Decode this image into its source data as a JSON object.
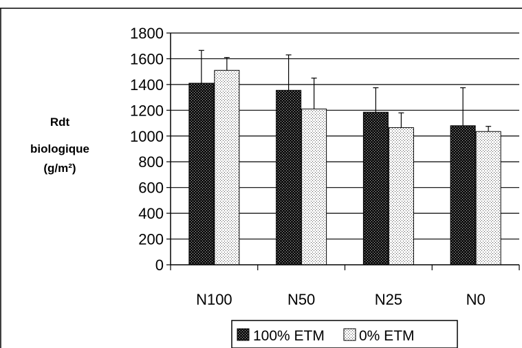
{
  "chart_data": {
    "type": "bar",
    "ylabel_lines": [
      "Rdt",
      "biologique",
      "(g/m²)"
    ],
    "categories": [
      "N100",
      "N50",
      "N25",
      "N0"
    ],
    "ylim": [
      0,
      1800
    ],
    "yticks": [
      0,
      200,
      400,
      600,
      800,
      1000,
      1200,
      1400,
      1600,
      1800
    ],
    "grid": true,
    "legend_position": "bottom",
    "series": [
      {
        "name": "100% ETM",
        "values": [
          1410,
          1355,
          1185,
          1080
        ],
        "errors": [
          255,
          275,
          190,
          295
        ],
        "color": "#1a1a1a",
        "pattern": "dark-dotted"
      },
      {
        "name": "0% ETM",
        "values": [
          1510,
          1210,
          1065,
          1035
        ],
        "errors": [
          100,
          240,
          115,
          40
        ],
        "color": "#ffffff",
        "pattern": "light-dotted"
      }
    ]
  }
}
